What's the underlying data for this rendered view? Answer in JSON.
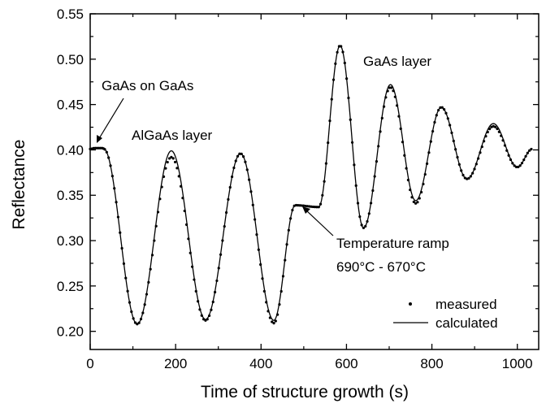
{
  "chart_data": {
    "type": "line",
    "title": "",
    "xlabel": "Time of structure growth (s)",
    "ylabel": "Reflectance",
    "xlim": [
      0,
      1050
    ],
    "ylim": [
      0.18,
      0.55
    ],
    "x_ticks": [
      0,
      200,
      400,
      600,
      800,
      1000
    ],
    "x_tick_labels": [
      "0",
      "200",
      "400",
      "600",
      "800",
      "1000"
    ],
    "y_ticks": [
      0.2,
      0.25,
      0.3,
      0.35,
      0.4,
      0.45,
      0.5,
      0.55
    ],
    "y_tick_labels": [
      "0.20",
      "0.25",
      "0.30",
      "0.35",
      "0.40",
      "0.45",
      "0.50",
      "0.55"
    ],
    "grid": false,
    "legend_position": "bottom-right",
    "series": [
      {
        "name": "measured",
        "style": "dots",
        "points": [
          [
            0,
            0.401
          ],
          [
            10,
            0.402
          ],
          [
            20,
            0.402
          ],
          [
            30,
            0.402
          ],
          [
            32,
            0.401
          ],
          [
            190,
            0.392
          ],
          [
            110,
            0.208
          ],
          [
            270,
            0.212
          ],
          [
            352,
            0.396
          ],
          [
            430,
            0.209
          ],
          [
            480,
            0.339
          ],
          [
            535,
            0.337
          ],
          [
            585,
            0.515
          ],
          [
            640,
            0.314
          ],
          [
            703,
            0.469
          ],
          [
            762,
            0.341
          ],
          [
            822,
            0.447
          ],
          [
            882,
            0.368
          ],
          [
            944,
            0.426
          ],
          [
            1000,
            0.381
          ],
          [
            1035,
            0.401
          ]
        ]
      },
      {
        "name": "calculated",
        "style": "solid",
        "points": [
          [
            0,
            0.401
          ],
          [
            10,
            0.402
          ],
          [
            20,
            0.402
          ],
          [
            30,
            0.402
          ],
          [
            32,
            0.401
          ],
          [
            190,
            0.399
          ],
          [
            110,
            0.208
          ],
          [
            270,
            0.213
          ],
          [
            352,
            0.396
          ],
          [
            430,
            0.212
          ],
          [
            480,
            0.339
          ],
          [
            535,
            0.337
          ],
          [
            585,
            0.515
          ],
          [
            640,
            0.314
          ],
          [
            703,
            0.472
          ],
          [
            762,
            0.344
          ],
          [
            822,
            0.447
          ],
          [
            882,
            0.368
          ],
          [
            944,
            0.429
          ],
          [
            1000,
            0.381
          ],
          [
            1035,
            0.401
          ]
        ]
      }
    ],
    "annotations": [
      {
        "text": "GaAs on GaAs"
      },
      {
        "text": "AlGaAs layer"
      },
      {
        "text": "GaAs layer"
      },
      {
        "text_lines": [
          "Temperature ramp",
          "690°C - 670°C"
        ]
      }
    ]
  }
}
